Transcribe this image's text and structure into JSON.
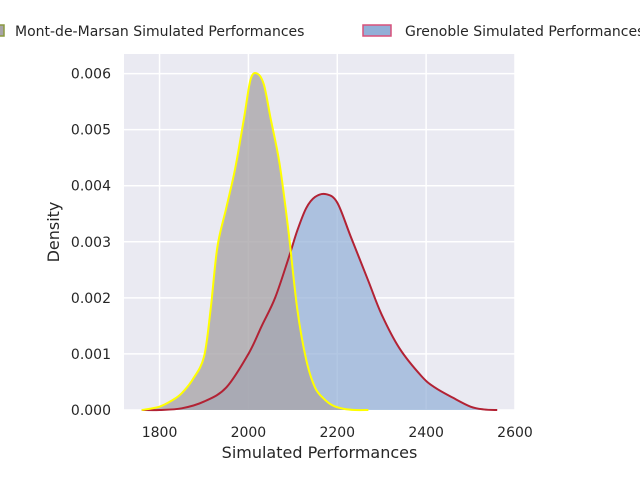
{
  "chart_data": {
    "type": "area",
    "title": "",
    "xlabel": "Simulated Performances",
    "ylabel": "Density",
    "xlim": [
      1720,
      2600
    ],
    "ylim": [
      0,
      0.00635
    ],
    "x_ticks": [
      1800,
      2000,
      2200,
      2400,
      2600
    ],
    "x_tick_labels": [
      "1800",
      "2000",
      "2200",
      "2400",
      "2600"
    ],
    "y_ticks": [
      0,
      0.001,
      0.002,
      0.003,
      0.004,
      0.005,
      0.006
    ],
    "y_tick_labels": [
      "0.000",
      "0.001",
      "0.002",
      "0.003",
      "0.004",
      "0.005",
      "0.006"
    ],
    "grid": true,
    "legend_position": "top",
    "series": [
      {
        "name": "Mont-de-Marsan Simulated Performances",
        "fill_color": "#a8a4a8",
        "line_color": "#ffff00",
        "legend_edge_color": "#8a9a40",
        "x": [
          1760,
          1800,
          1830,
          1850,
          1875,
          1900,
          1915,
          1930,
          1950,
          1970,
          1990,
          2005,
          2020,
          2035,
          2050,
          2070,
          2090,
          2110,
          2130,
          2150,
          2170,
          2190,
          2215,
          2240,
          2270
        ],
        "y": [
          0.0,
          6e-05,
          0.00018,
          0.0003,
          0.00055,
          0.00095,
          0.0018,
          0.0029,
          0.0036,
          0.0043,
          0.0052,
          0.0059,
          0.006,
          0.0058,
          0.0052,
          0.0044,
          0.0032,
          0.0018,
          0.0009,
          0.0004,
          0.0002,
          8e-05,
          2e-05,
          0.0,
          0.0
        ]
      },
      {
        "name": "Grenoble Simulated Performances",
        "fill_color": "#92afd7",
        "line_color": "#b22234",
        "legend_edge_color": "#d9507a",
        "x": [
          1760,
          1800,
          1850,
          1900,
          1950,
          2000,
          2030,
          2060,
          2090,
          2110,
          2130,
          2150,
          2175,
          2200,
          2230,
          2270,
          2300,
          2340,
          2390,
          2420,
          2460,
          2500,
          2530,
          2560
        ],
        "y": [
          0.0,
          0.0,
          3e-05,
          0.00015,
          0.0004,
          0.001,
          0.0015,
          0.002,
          0.0027,
          0.0032,
          0.0036,
          0.0038,
          0.00385,
          0.0037,
          0.0031,
          0.0023,
          0.0017,
          0.0011,
          0.0006,
          0.0004,
          0.00022,
          6e-05,
          1e-05,
          0.0
        ]
      }
    ]
  }
}
